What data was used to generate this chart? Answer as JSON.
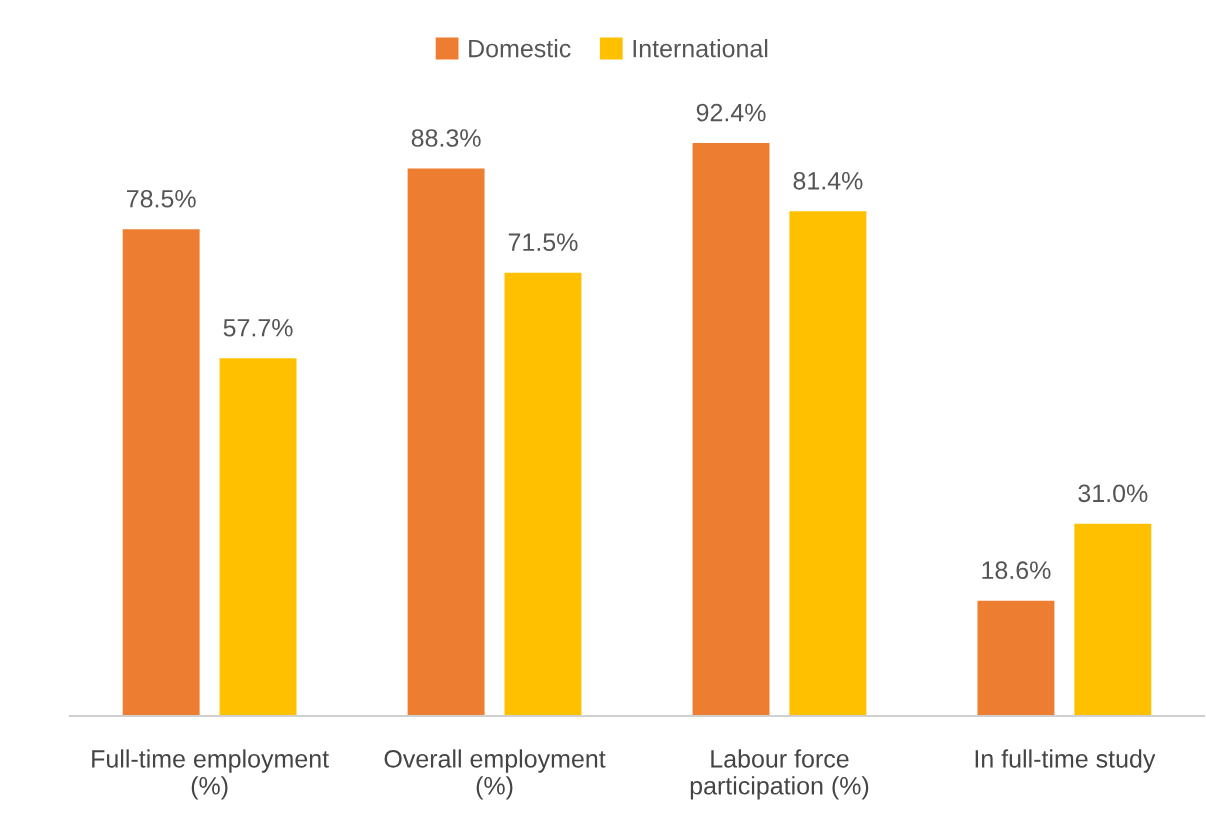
{
  "chart_data": {
    "type": "bar",
    "categories": [
      "Full-time employment\n(%)",
      "Overall employment\n(%)",
      "Labour force\nparticipation (%)",
      "In full-time study"
    ],
    "series": [
      {
        "name": "Domestic",
        "color": "#ed7d31",
        "values": [
          78.5,
          88.3,
          92.4,
          18.6
        ],
        "value_labels": [
          "78.5%",
          "88.3%",
          "92.4%",
          "18.6%"
        ]
      },
      {
        "name": "International",
        "color": "#ffc000",
        "values": [
          57.7,
          71.5,
          81.4,
          31.0
        ],
        "value_labels": [
          "57.7%",
          "71.5%",
          "81.4%",
          "31.0%"
        ]
      }
    ],
    "legend": "top",
    "grid": false
  }
}
